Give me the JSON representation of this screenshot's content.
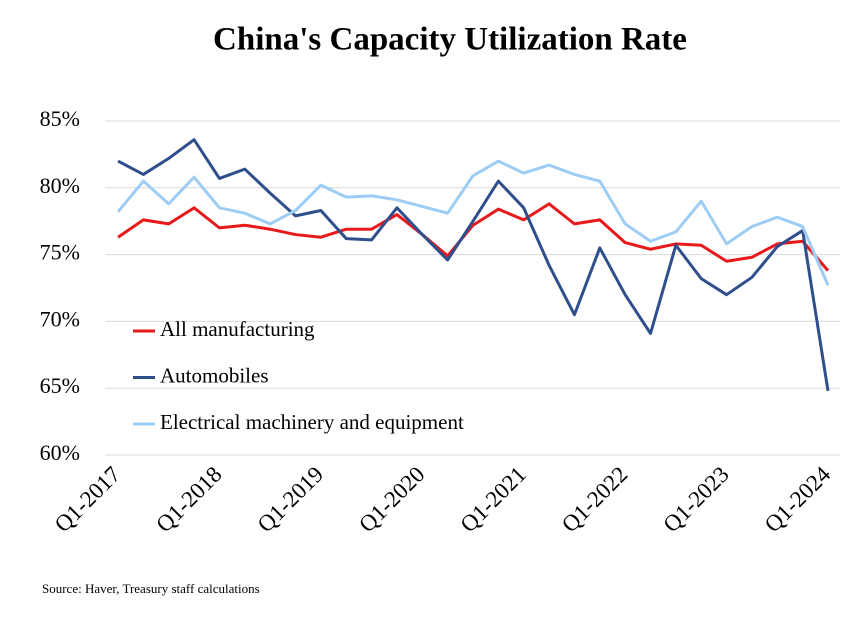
{
  "chart_data": {
    "type": "line",
    "title": "China's Capacity Utilization Rate",
    "source": "Source: Haver, Treasury staff calculations",
    "categories": [
      "Q1-2017",
      null,
      null,
      null,
      "Q1-2018",
      null,
      null,
      null,
      "Q1-2019",
      null,
      null,
      null,
      "Q1-2020",
      null,
      null,
      null,
      "Q1-2021",
      null,
      null,
      null,
      "Q1-2022",
      null,
      null,
      null,
      "Q1-2023",
      null,
      null,
      null,
      "Q1-2024"
    ],
    "series": [
      {
        "name": "All manufacturing",
        "color": "#e8191b",
        "values": [
          76.3,
          77.6,
          77.3,
          78.5,
          77.0,
          77.2,
          76.9,
          76.5,
          76.3,
          76.9,
          76.9,
          78.0,
          76.5,
          74.9,
          77.2,
          78.4,
          77.6,
          78.8,
          77.3,
          77.6,
          75.9,
          75.4,
          75.8,
          75.7,
          74.5,
          74.8,
          75.8,
          76.0,
          73.8
        ]
      },
      {
        "name": "Automobiles",
        "color": "#2f4f8c",
        "values": [
          82.0,
          81.0,
          82.2,
          83.6,
          80.7,
          81.4,
          79.6,
          77.9,
          78.3,
          76.2,
          76.1,
          78.5,
          76.5,
          74.6,
          77.5,
          80.5,
          78.5,
          74.2,
          70.5,
          75.5,
          72.0,
          69.1,
          75.7,
          73.2,
          72.0,
          73.3,
          75.6,
          76.8,
          64.8
        ]
      },
      {
        "name": "Electrical machinery and equipment",
        "color": "#9dcdf5",
        "values": [
          78.2,
          80.5,
          78.8,
          80.8,
          78.5,
          78.1,
          77.3,
          78.3,
          80.2,
          79.3,
          79.4,
          79.1,
          78.6,
          78.1,
          80.9,
          82.0,
          81.1,
          81.7,
          81.0,
          80.5,
          77.3,
          76.0,
          76.7,
          79.0,
          75.8,
          77.1,
          77.8,
          77.1,
          72.7
        ]
      }
    ],
    "ylim": [
      60,
      85
    ],
    "yticks": [
      {
        "value": 60,
        "label": "60%"
      },
      {
        "value": 65,
        "label": "65%"
      },
      {
        "value": 70,
        "label": "70%"
      },
      {
        "value": 75,
        "label": "75%"
      },
      {
        "value": 80,
        "label": "80%"
      },
      {
        "value": 85,
        "label": "85%"
      }
    ],
    "grid": true,
    "legend": "left"
  }
}
